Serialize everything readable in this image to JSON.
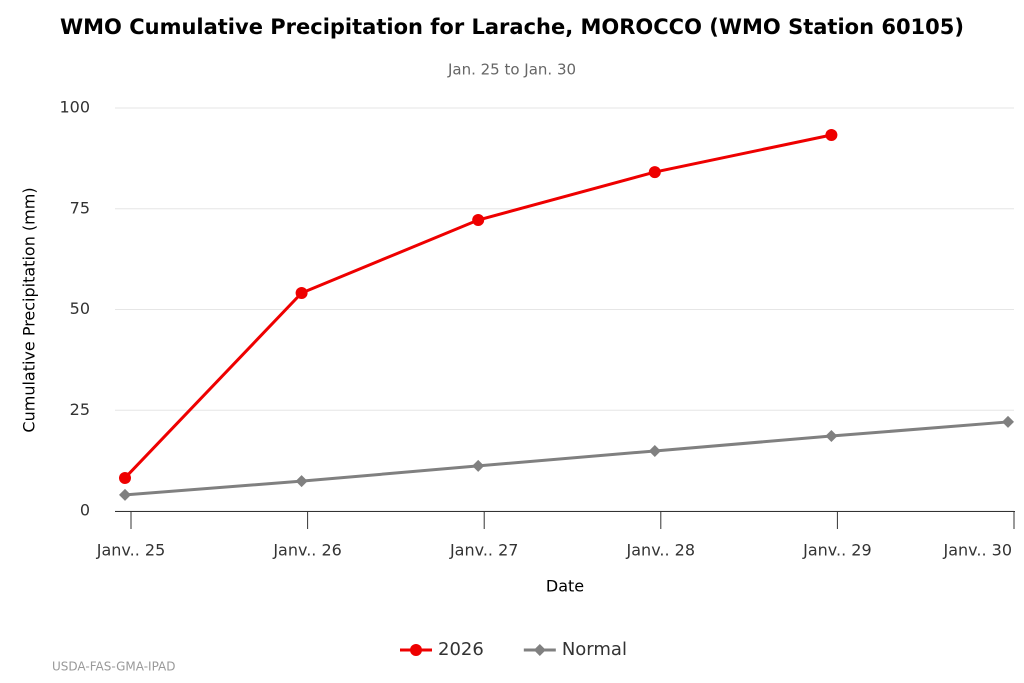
{
  "chart_data": {
    "type": "line",
    "title": "WMO Cumulative Precipitation for Larache, MOROCCO (WMO Station 60105)",
    "subtitle": "Jan. 25 to Jan. 30",
    "x_label": "Date",
    "y_label": "Cumulative Precipitation (mm)",
    "categories": [
      "Janv.. 25",
      "Janv.. 26",
      "Janv.. 27",
      "Janv.. 28",
      "Janv.. 29",
      "Janv.. 30"
    ],
    "series": [
      {
        "name": "2026",
        "color": "#ee0000",
        "marker": "circle",
        "values": [
          8.2,
          54.1,
          72.2,
          84.1,
          93.3,
          null
        ]
      },
      {
        "name": "Normal",
        "color": "#808080",
        "marker": "diamond",
        "values": [
          4.0,
          7.4,
          11.2,
          14.9,
          18.6,
          22.1
        ]
      }
    ],
    "ylim": [
      0,
      100
    ],
    "yticks": [
      0,
      25,
      50,
      75,
      100
    ],
    "grid": true,
    "legend": "bottom",
    "credit": "USDA-FAS-GMA-IPAD"
  }
}
